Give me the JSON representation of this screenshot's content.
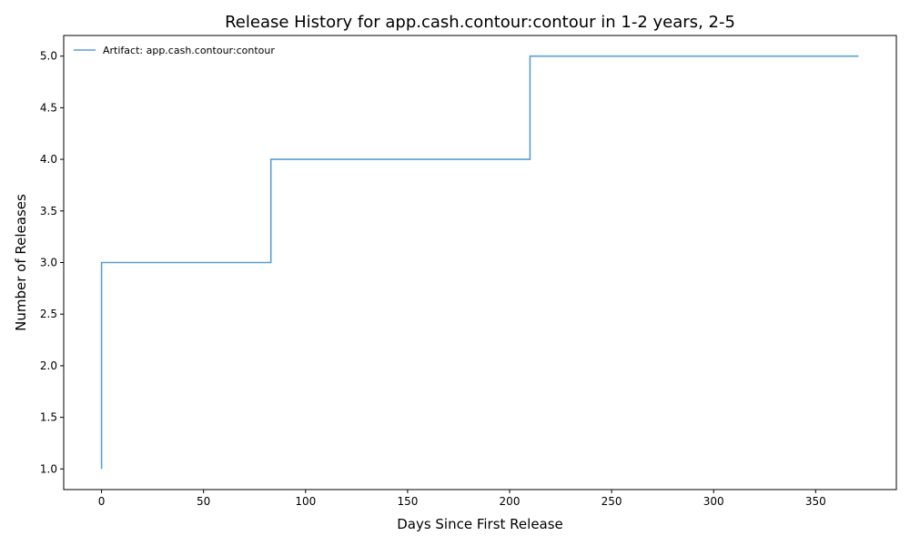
{
  "chart_data": {
    "type": "line",
    "step": "post",
    "title": "Release History for app.cash.contour:contour in 1-2 years, 2-5",
    "xlabel": "Days Since First Release",
    "ylabel": "Number of Releases",
    "xlim": [
      -18.55,
      389.55
    ],
    "ylim": [
      0.8,
      5.2
    ],
    "xticks": [
      0,
      50,
      100,
      150,
      200,
      250,
      300,
      350
    ],
    "xtick_labels": [
      "0",
      "50",
      "100",
      "150",
      "200",
      "250",
      "300",
      "350"
    ],
    "yticks": [
      1.0,
      1.5,
      2.0,
      2.5,
      3.0,
      3.5,
      4.0,
      4.5,
      5.0
    ],
    "ytick_labels": [
      "1.0",
      "1.5",
      "2.0",
      "2.5",
      "3.0",
      "3.5",
      "4.0",
      "4.5",
      "5.0"
    ],
    "grid": false,
    "legend_position": "top-left",
    "series": [
      {
        "name": "Artifact: app.cash.contour:contour",
        "color": "#5b9fcb",
        "x": [
          0,
          0,
          83,
          210,
          371
        ],
        "y": [
          1,
          3,
          4,
          5,
          5
        ]
      }
    ]
  }
}
